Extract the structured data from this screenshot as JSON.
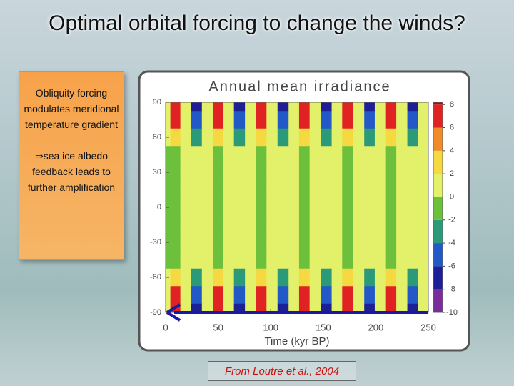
{
  "slide": {
    "title": "Optimal orbital forcing to change the winds?",
    "box": {
      "paragraphs": [
        "Obliquity forcing modulates meridional temperature gradient",
        "⇒sea ice albedo feedback leads to further amplification"
      ]
    },
    "source": "From Loutre et al., 2004"
  },
  "chart_data": {
    "type": "heatmap",
    "title": "Annual mean irradiance",
    "x_label": "Time (kyr BP)",
    "x": [
      0,
      9,
      19,
      29,
      40,
      50,
      60,
      70,
      81,
      91,
      101,
      112,
      122,
      132,
      142,
      153,
      163,
      173,
      184,
      194,
      204,
      214,
      225,
      235,
      245
    ],
    "y": [
      90,
      75,
      60,
      45,
      30,
      15,
      0,
      -15,
      -30,
      -45,
      -60,
      -75,
      -90
    ],
    "z": [
      [
        1.5,
        7.5,
        0,
        -7.5,
        0,
        7.5,
        0,
        -7.5,
        0,
        7.5,
        0,
        -7.5,
        0,
        7.5,
        0,
        -7.5,
        0,
        7.5,
        0,
        -7.5,
        0,
        7.5,
        0,
        -7.5,
        0
      ],
      [
        1.2,
        6,
        0,
        -6,
        0,
        6,
        0,
        -6,
        0,
        6,
        0,
        -6,
        0,
        6,
        0,
        -6,
        0,
        6,
        0,
        -6,
        0,
        6,
        0,
        -6,
        0
      ],
      [
        0.6,
        3,
        0,
        -3,
        0,
        3,
        0,
        -3,
        0,
        3,
        0,
        -3,
        0,
        3,
        0,
        -3,
        0,
        3,
        0,
        -3,
        0,
        3,
        0,
        -3,
        0
      ],
      [
        -0.2,
        -1,
        0,
        1,
        0,
        -1,
        0,
        1,
        0,
        -1,
        0,
        1,
        0,
        -1,
        0,
        1,
        0,
        -1,
        0,
        1,
        0,
        -1,
        0,
        1,
        0
      ],
      [
        -0.3,
        -1.5,
        0,
        1.5,
        0,
        -1.5,
        0,
        1.5,
        0,
        -1.5,
        0,
        1.5,
        0,
        -1.5,
        0,
        1.5,
        0,
        -1.5,
        0,
        1.5,
        0,
        -1.5,
        0,
        1.5,
        0
      ],
      [
        -0.3,
        -1.5,
        0,
        1.5,
        0,
        -1.5,
        0,
        1.5,
        0,
        -1.5,
        0,
        1.5,
        0,
        -1.5,
        0,
        1.5,
        0,
        -1.5,
        0,
        1.5,
        0,
        -1.5,
        0,
        1.5,
        0
      ],
      [
        -0.3,
        -1.5,
        0,
        1.5,
        0,
        -1.5,
        0,
        1.5,
        0,
        -1.5,
        0,
        1.5,
        0,
        -1.5,
        0,
        1.5,
        0,
        -1.5,
        0,
        1.5,
        0,
        -1.5,
        0,
        1.5,
        0
      ],
      [
        -0.3,
        -1.5,
        0,
        1.5,
        0,
        -1.5,
        0,
        1.5,
        0,
        -1.5,
        0,
        1.5,
        0,
        -1.5,
        0,
        1.5,
        0,
        -1.5,
        0,
        1.5,
        0,
        -1.5,
        0,
        1.5,
        0
      ],
      [
        -0.3,
        -1.5,
        0,
        1.5,
        0,
        -1.5,
        0,
        1.5,
        0,
        -1.5,
        0,
        1.5,
        0,
        -1.5,
        0,
        1.5,
        0,
        -1.5,
        0,
        1.5,
        0,
        -1.5,
        0,
        1.5,
        0
      ],
      [
        -0.2,
        -1,
        0,
        1,
        0,
        -1,
        0,
        1,
        0,
        -1,
        0,
        1,
        0,
        -1,
        0,
        1,
        0,
        -1,
        0,
        1,
        0,
        -1,
        0,
        1,
        0
      ],
      [
        0.6,
        3,
        0,
        -3,
        0,
        3,
        0,
        -3,
        0,
        3,
        0,
        -3,
        0,
        3,
        0,
        -3,
        0,
        3,
        0,
        -3,
        0,
        3,
        0,
        -3,
        0
      ],
      [
        1.2,
        6,
        0,
        -6,
        0,
        6,
        0,
        -6,
        0,
        6,
        0,
        -6,
        0,
        6,
        0,
        -6,
        0,
        6,
        0,
        -6,
        0,
        6,
        0,
        -6,
        0
      ],
      [
        1.5,
        7.5,
        0,
        -7.5,
        0,
        7.5,
        0,
        -7.5,
        0,
        7.5,
        0,
        -7.5,
        0,
        7.5,
        0,
        -7.5,
        0,
        7.5,
        0,
        -7.5,
        0,
        7.5,
        0,
        -7.5,
        0
      ]
    ],
    "xlim": [
      0,
      250
    ],
    "xticks": [
      0,
      50,
      100,
      150,
      200,
      250
    ],
    "ylim": [
      -90,
      90
    ],
    "yticks": [
      90,
      60,
      30,
      0,
      -30,
      -60,
      -90
    ],
    "levels": [
      -10,
      -8,
      -6,
      -4,
      -2,
      0,
      2,
      4,
      6,
      8
    ],
    "colors": [
      "#7a2c9a",
      "#1c1f96",
      "#2358c8",
      "#2a9a78",
      "#6cc03c",
      "#e2f06a",
      "#f6d840",
      "#f08a2a",
      "#e02222",
      "#9a1010"
    ],
    "clim": [
      -10,
      8.2
    ]
  }
}
